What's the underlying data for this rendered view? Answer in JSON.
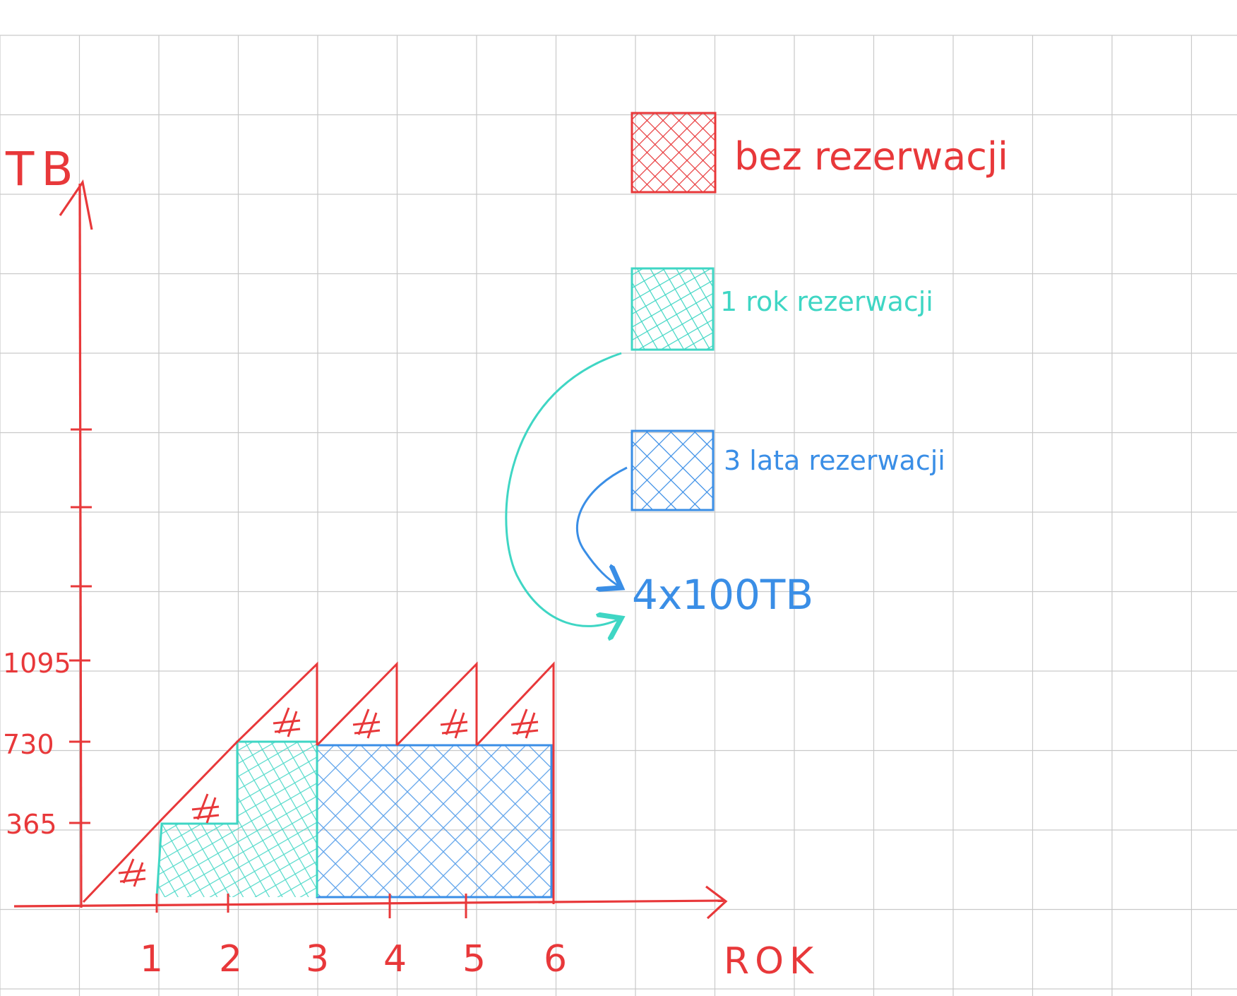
{
  "colors": {
    "grid": "#c9c9c9",
    "red": "#e8383a",
    "teal": "#3fd6c4",
    "blue": "#3a8ee6"
  },
  "axis": {
    "y_label": "TB",
    "x_label": "ROK",
    "y_ticks": [
      "365",
      "730",
      "1095"
    ],
    "x_ticks": [
      "1",
      "2",
      "3",
      "4",
      "5",
      "6"
    ]
  },
  "legend": {
    "no_reservation": "bez rezerwacji",
    "one_year": "1 rok rezerwacji",
    "three_years": "3 lata rezerwacji"
  },
  "annotation": {
    "capacity": "4x100TB"
  },
  "chart_data": {
    "type": "area",
    "xlabel": "ROK",
    "ylabel": "TB",
    "x_ticks": [
      1,
      2,
      3,
      4,
      5,
      6
    ],
    "y_ticks": [
      365,
      730,
      1095
    ],
    "series": [
      {
        "name": "bez rezerwacji",
        "values": [
          [
            0,
            0
          ],
          [
            1,
            365
          ],
          [
            2,
            730
          ],
          [
            3,
            1095
          ],
          [
            4,
            1095
          ],
          [
            5,
            1095
          ],
          [
            6,
            1095
          ]
        ]
      },
      {
        "name": "1 rok rezerwacji",
        "values": [
          [
            1,
            365
          ],
          [
            2,
            730
          ],
          [
            3,
            730
          ]
        ]
      },
      {
        "name": "3 lata rezerwacji",
        "values": [
          [
            3,
            730
          ],
          [
            6,
            730
          ]
        ]
      }
    ]
  }
}
